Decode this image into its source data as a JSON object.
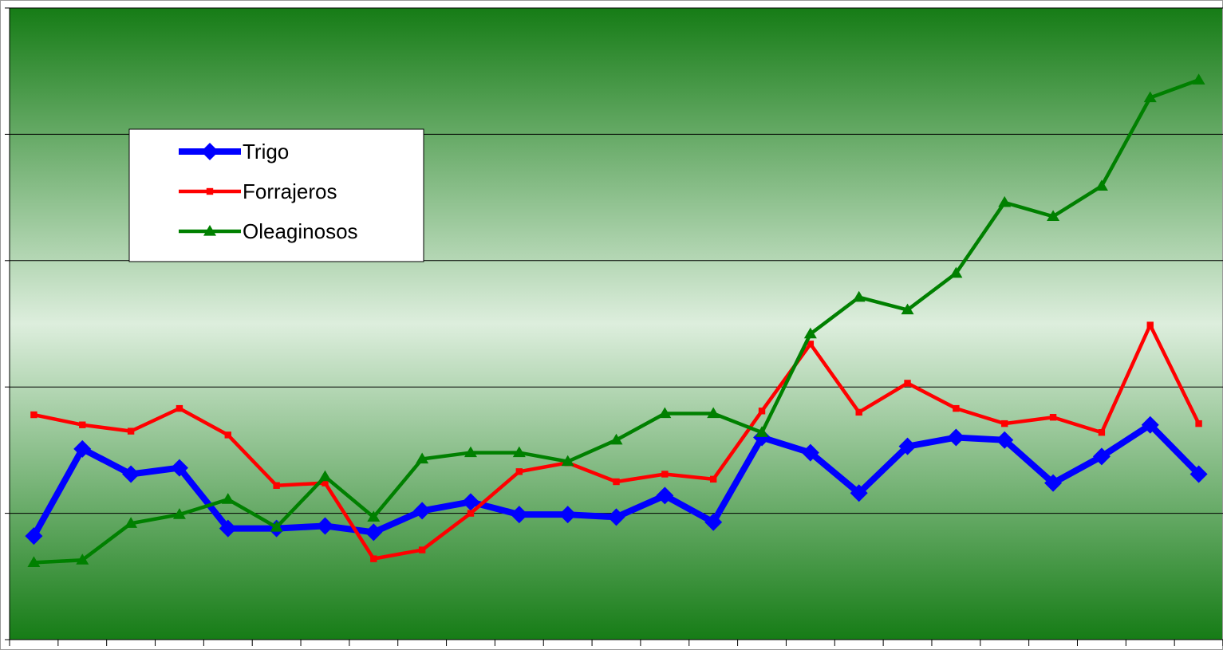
{
  "chart_data": {
    "type": "line",
    "categories": [
      null,
      null,
      null,
      null,
      null,
      null,
      null,
      null,
      null,
      null,
      null,
      null,
      null,
      null,
      null,
      null,
      null,
      null,
      null,
      null,
      null,
      null,
      null,
      null,
      null
    ],
    "series": [
      {
        "name": "Trigo",
        "color": "#0000ff",
        "marker": "diamond",
        "values": [
          0.82,
          1.51,
          1.31,
          1.36,
          0.88,
          0.88,
          0.9,
          0.85,
          1.02,
          1.09,
          0.99,
          0.99,
          0.97,
          1.14,
          0.93,
          1.6,
          1.48,
          1.16,
          1.53,
          1.6,
          1.58,
          1.24,
          1.45,
          1.7,
          1.31
        ]
      },
      {
        "name": "Forrajeros",
        "color": "#ff0000",
        "marker": "square",
        "values": [
          1.78,
          1.7,
          1.65,
          1.83,
          1.62,
          1.22,
          1.24,
          0.64,
          0.71,
          1.0,
          1.33,
          1.4,
          1.25,
          1.31,
          1.27,
          1.81,
          2.34,
          1.8,
          2.03,
          1.83,
          1.71,
          1.76,
          1.64,
          2.49,
          1.71
        ]
      },
      {
        "name": "Oleaginosos",
        "color": "#008000",
        "marker": "triangle",
        "values": [
          0.61,
          0.63,
          0.92,
          0.99,
          1.11,
          0.89,
          1.29,
          0.97,
          1.43,
          1.48,
          1.48,
          1.41,
          1.58,
          1.79,
          1.79,
          1.64,
          2.42,
          2.71,
          2.61,
          2.9,
          3.46,
          3.35,
          3.59,
          4.29,
          4.43
        ]
      }
    ],
    "ylim": [
      0,
      5
    ],
    "yticks": [
      0,
      1,
      2,
      3,
      4,
      5
    ],
    "grid": true,
    "legend": "upper left"
  }
}
